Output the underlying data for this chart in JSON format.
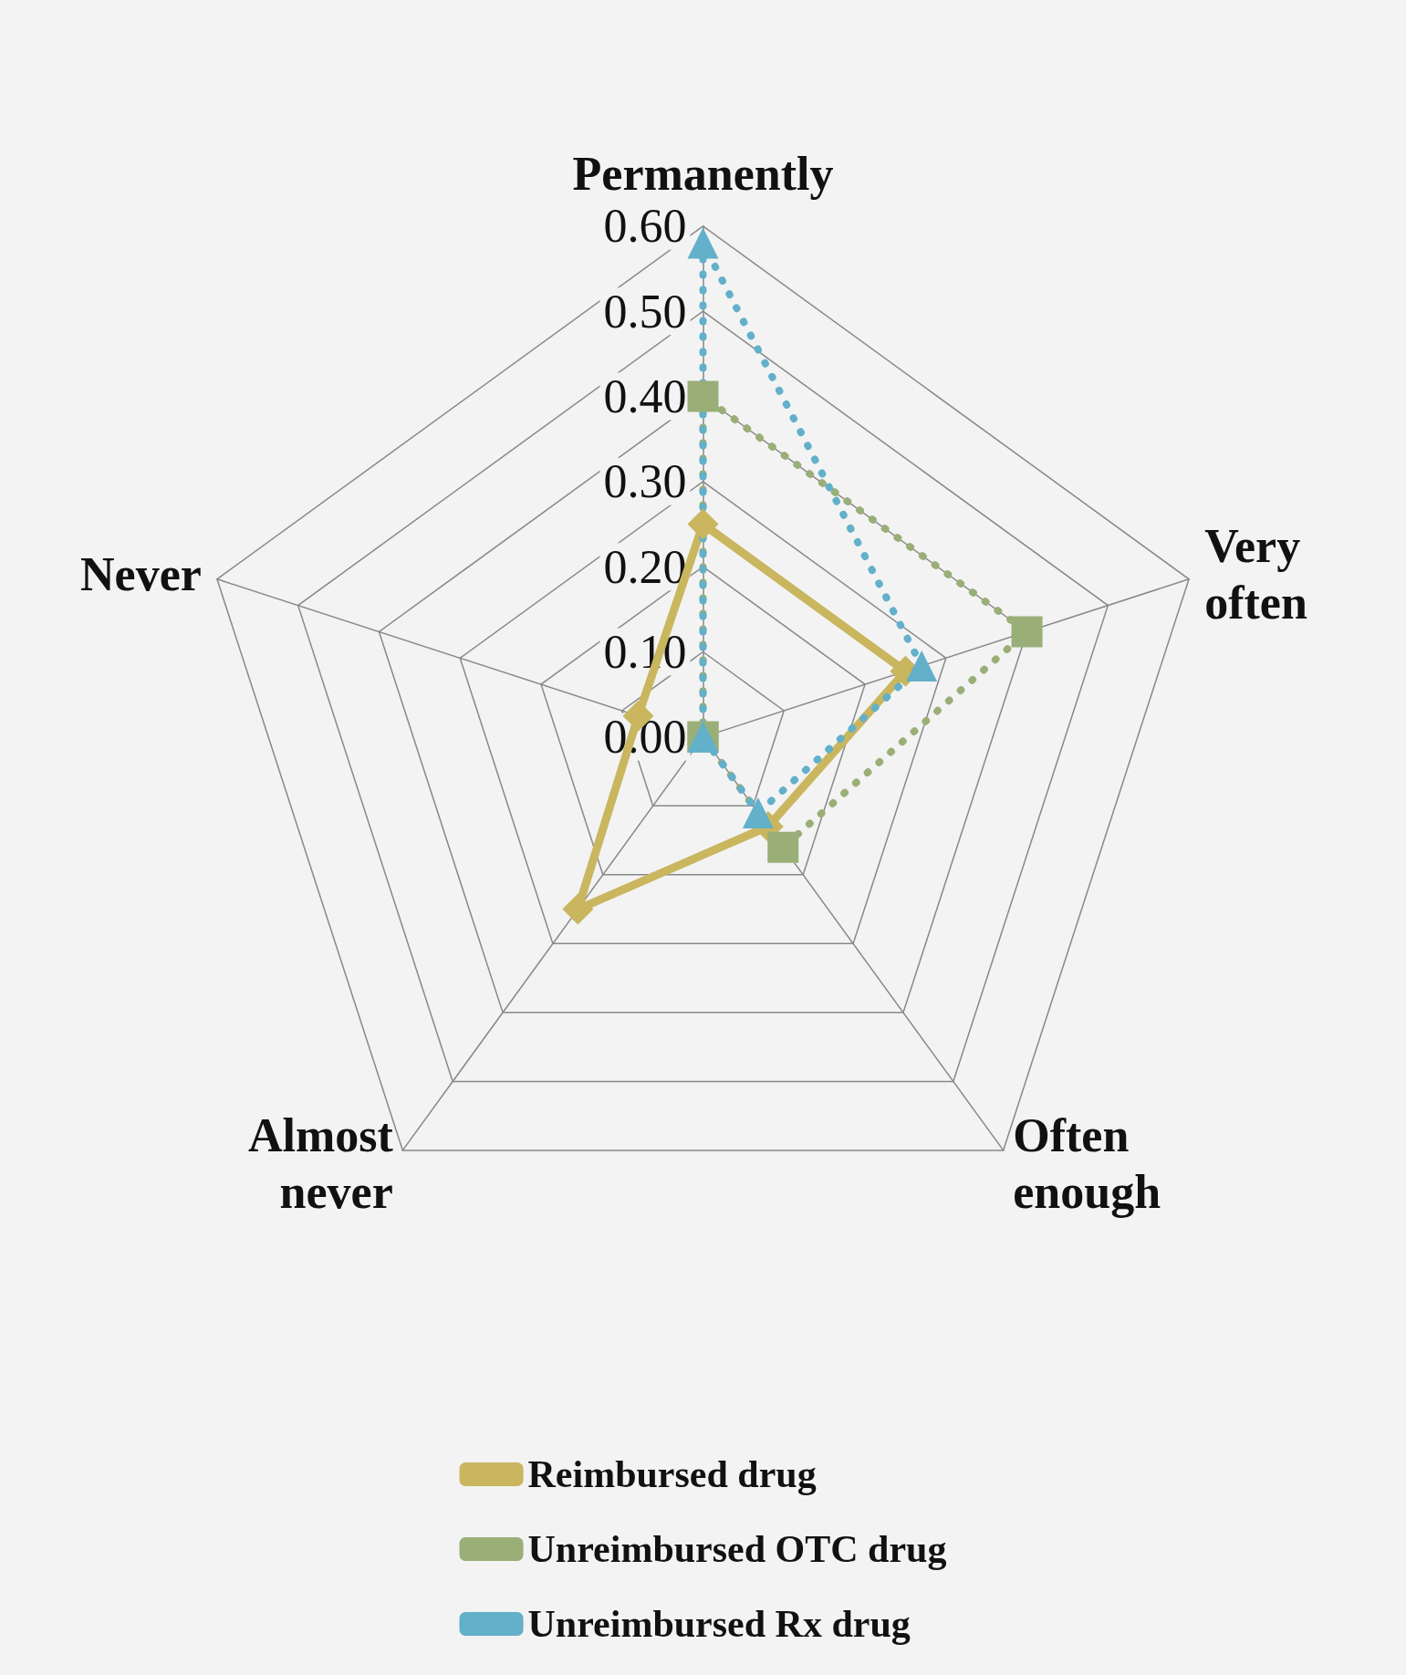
{
  "chart_data": {
    "type": "radar",
    "categories": [
      "Permanently",
      "Very often",
      "Often enough",
      "Almost never",
      "Never"
    ],
    "ylim": [
      0,
      0.6
    ],
    "yticks": [
      {
        "value": 0,
        "label": "0.00"
      },
      {
        "value": 0.1,
        "label": "0.10"
      },
      {
        "value": 0.2,
        "label": "0.20"
      },
      {
        "value": 0.3,
        "label": "0.30"
      },
      {
        "value": 0.4,
        "label": "0.40"
      },
      {
        "value": 0.5,
        "label": "0.50"
      },
      {
        "value": 0.6,
        "label": "0.60"
      }
    ],
    "legend": "bottom",
    "series": [
      {
        "name": "Reimbursed drug",
        "color": "#c9b65f",
        "marker": "diamond",
        "line_style": "solid",
        "values": [
          0.25,
          0.25,
          0.13,
          0.25,
          0.08
        ]
      },
      {
        "name": "Unreimbursed OTC drug",
        "color": "#9aae78",
        "marker": "square",
        "line_style": "dotted",
        "values": [
          0.4,
          0.4,
          0.16,
          0,
          0
        ]
      },
      {
        "name": "Unreimbursed Rx drug",
        "color": "#62b0c9",
        "marker": "triangle",
        "line_style": "dotted",
        "values": [
          0.58,
          0.27,
          0.11,
          0,
          0
        ]
      }
    ]
  }
}
